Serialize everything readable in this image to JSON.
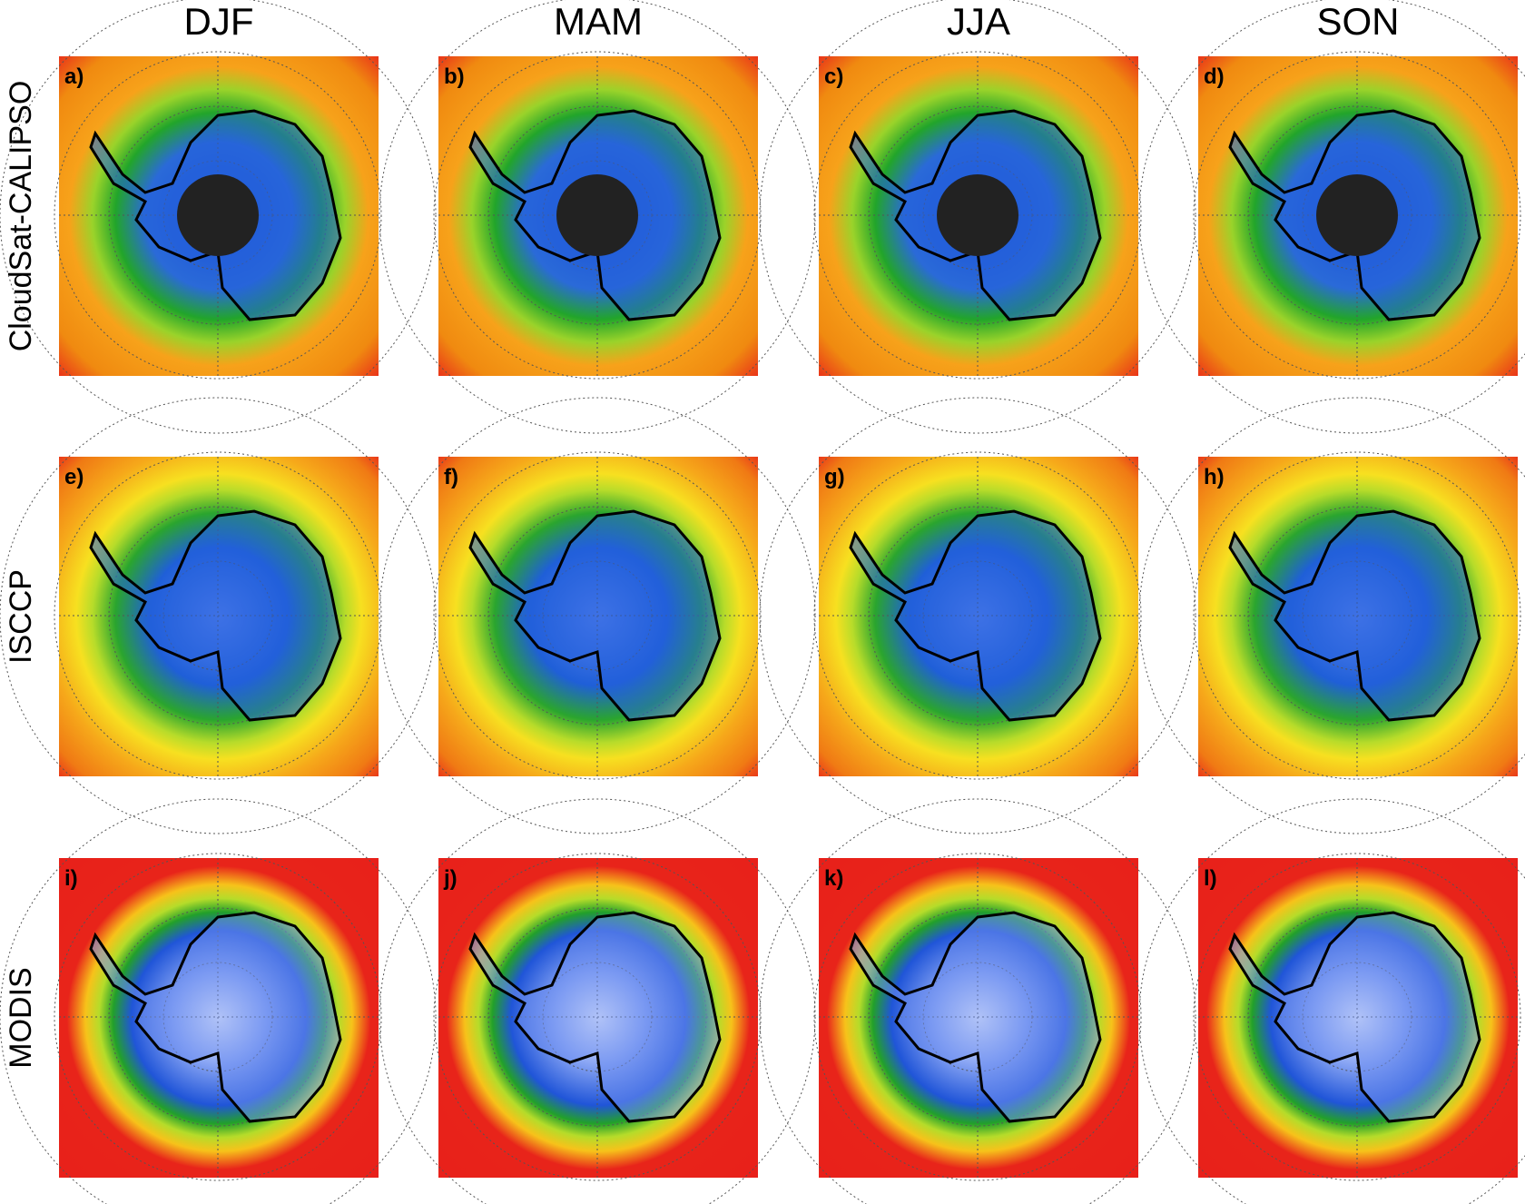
{
  "columns": [
    "DJF",
    "MAM",
    "JJA",
    "SON"
  ],
  "rows": [
    "CloudSat-CALIPSO",
    "ISCCP",
    "MODIS"
  ],
  "panels": [
    "a)",
    "b)",
    "c)",
    "d)",
    "e)",
    "f)",
    "g)",
    "h)",
    "i)",
    "j)",
    "k)",
    "l)"
  ]
}
